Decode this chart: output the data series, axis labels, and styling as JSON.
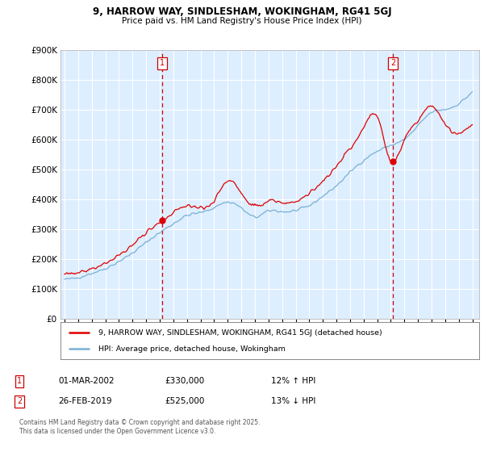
{
  "title": "9, HARROW WAY, SINDLESHAM, WOKINGHAM, RG41 5GJ",
  "subtitle": "Price paid vs. HM Land Registry's House Price Index (HPI)",
  "ylim": [
    0,
    900000
  ],
  "yticks": [
    0,
    100000,
    200000,
    300000,
    400000,
    500000,
    600000,
    700000,
    800000,
    900000
  ],
  "ytick_labels": [
    "£0",
    "£100K",
    "£200K",
    "£300K",
    "£400K",
    "£500K",
    "£600K",
    "£700K",
    "£800K",
    "£900K"
  ],
  "background_color": "#ffffff",
  "plot_bg_color": "#ddeeff",
  "grid_color": "#ffffff",
  "red_line_color": "#dd0000",
  "blue_line_color": "#7ab0d4",
  "vline_color": "#cc0000",
  "marker1_label": "01-MAR-2002",
  "marker1_price": "£330,000",
  "marker1_pct": "12% ↑ HPI",
  "marker2_label": "26-FEB-2019",
  "marker2_price": "£525,000",
  "marker2_pct": "13% ↓ HPI",
  "legend_label_red": "9, HARROW WAY, SINDLESHAM, WOKINGHAM, RG41 5GJ (detached house)",
  "legend_label_blue": "HPI: Average price, detached house, Wokingham",
  "footnote": "Contains HM Land Registry data © Crown copyright and database right 2025.\nThis data is licensed under the Open Government Licence v3.0.",
  "vline1_x": 2002.17,
  "vline2_x": 2019.15,
  "marker1_y": 330000,
  "marker2_y": 525000,
  "xlim_left": 1994.7,
  "xlim_right": 2025.5
}
